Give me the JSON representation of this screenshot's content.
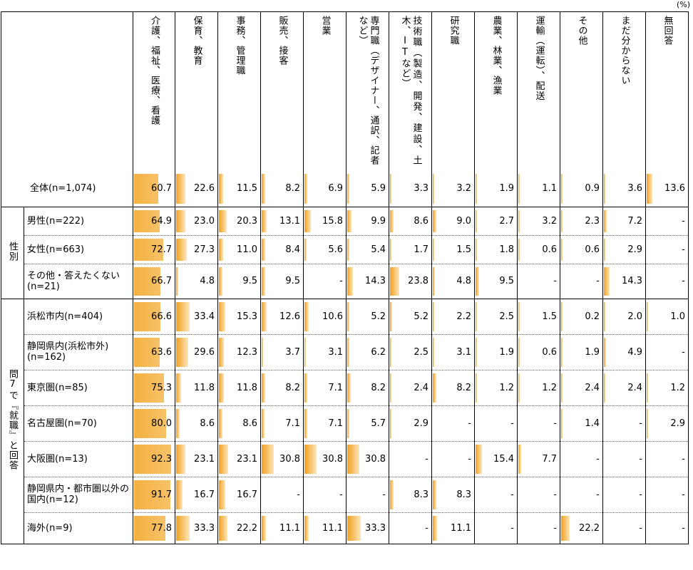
{
  "unit": "(%)",
  "chart_data": {
    "type": "table",
    "columns": [
      "介護、福祉、医療、看護",
      "保育、教育",
      "事務、管理職",
      "販売、接客",
      "営業",
      "専門職（デザイナー、通訳、記者など）",
      "技術職（製造、開発、建設、土木、ITなど）",
      "研究職",
      "農業、林業、漁業",
      "運輸（運転）、配送",
      "その他",
      "まだ分からない",
      "無回答"
    ],
    "groups": [
      {
        "label": "",
        "rows": [
          {
            "label": "全体(n=1,074)",
            "values": [
              "60.7",
              "22.6",
              "11.5",
              "8.2",
              "6.9",
              "5.9",
              "3.3",
              "3.2",
              "1.9",
              "1.1",
              "0.9",
              "3.6",
              "13.6"
            ]
          }
        ]
      },
      {
        "label": "性別",
        "rows": [
          {
            "label": "男性(n=222)",
            "values": [
              "64.9",
              "23.0",
              "20.3",
              "13.1",
              "15.8",
              "9.9",
              "8.6",
              "9.0",
              "2.7",
              "3.2",
              "2.3",
              "7.2",
              "-"
            ]
          },
          {
            "label": "女性(n=663)",
            "values": [
              "72.7",
              "27.3",
              "11.0",
              "8.4",
              "5.6",
              "5.4",
              "1.7",
              "1.5",
              "1.8",
              "0.6",
              "0.6",
              "2.9",
              "-"
            ]
          },
          {
            "label": "その他・答えたくない(n=21)",
            "values": [
              "66.7",
              "4.8",
              "9.5",
              "9.5",
              "-",
              "14.3",
              "23.8",
              "4.8",
              "9.5",
              "-",
              "-",
              "14.3",
              "-"
            ]
          }
        ]
      },
      {
        "label": "問7で『就職』と回答",
        "rows": [
          {
            "label": "浜松市内(n=404)",
            "values": [
              "66.6",
              "33.4",
              "15.3",
              "12.6",
              "10.6",
              "5.2",
              "5.2",
              "2.2",
              "2.5",
              "1.5",
              "0.2",
              "2.0",
              "1.0"
            ]
          },
          {
            "label": "静岡県内(浜松市外)(n=162)",
            "values": [
              "63.6",
              "29.6",
              "12.3",
              "3.7",
              "3.1",
              "6.2",
              "2.5",
              "3.1",
              "1.9",
              "0.6",
              "1.9",
              "4.9",
              "-"
            ]
          },
          {
            "label": "東京圏(n=85)",
            "values": [
              "75.3",
              "11.8",
              "11.8",
              "8.2",
              "7.1",
              "8.2",
              "2.4",
              "8.2",
              "1.2",
              "1.2",
              "2.4",
              "2.4",
              "1.2"
            ]
          },
          {
            "label": "名古屋圏(n=70)",
            "values": [
              "80.0",
              "8.6",
              "8.6",
              "7.1",
              "7.1",
              "5.7",
              "2.9",
              "-",
              "-",
              "-",
              "1.4",
              "-",
              "2.9"
            ]
          },
          {
            "label": "大阪圏(n=13)",
            "values": [
              "92.3",
              "23.1",
              "23.1",
              "30.8",
              "30.8",
              "30.8",
              "-",
              "-",
              "15.4",
              "7.7",
              "-",
              "-",
              "-"
            ]
          },
          {
            "label": "静岡県内・都市圏以外の国内(n=12)",
            "values": [
              "91.7",
              "16.7",
              "16.7",
              "-",
              "-",
              "-",
              "8.3",
              "8.3",
              "-",
              "-",
              "-",
              "-",
              "-"
            ]
          },
          {
            "label": "海外(n=9)",
            "values": [
              "77.8",
              "33.3",
              "22.2",
              "11.1",
              "11.1",
              "33.3",
              "-",
              "11.1",
              "-",
              "-",
              "22.2",
              "-",
              "-"
            ]
          }
        ]
      }
    ]
  }
}
